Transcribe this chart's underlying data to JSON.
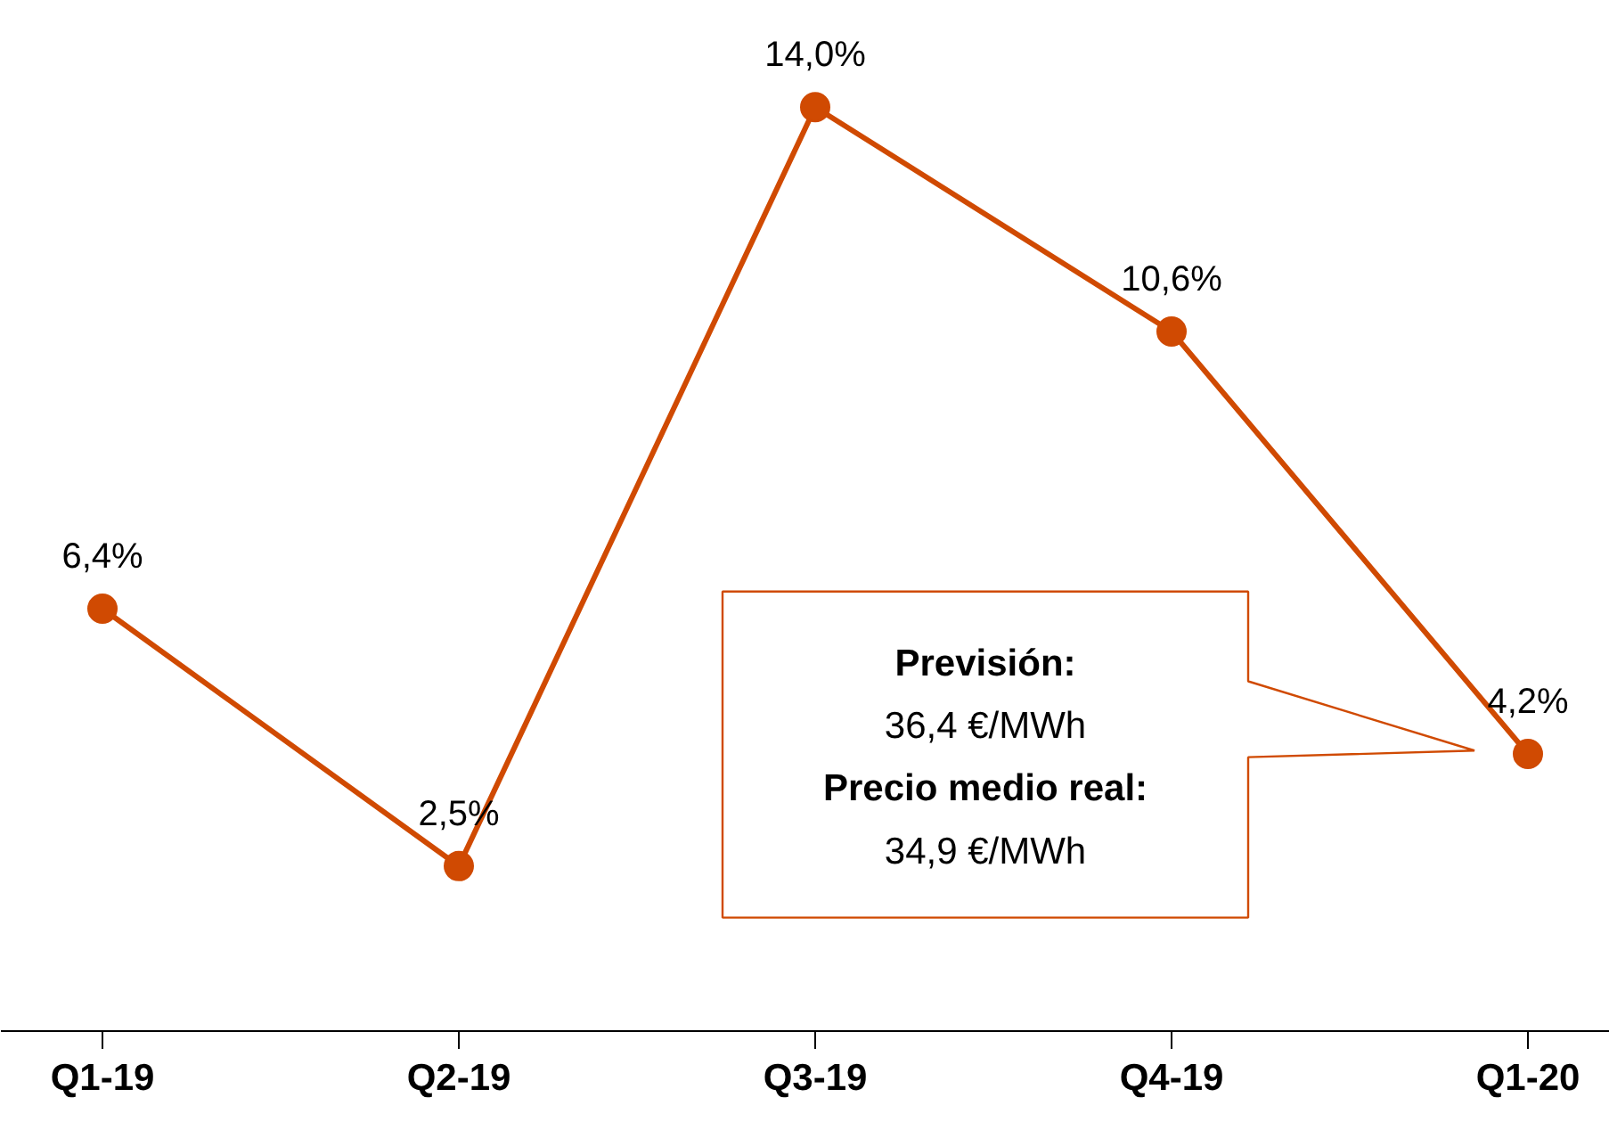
{
  "chart_data": {
    "type": "line",
    "categories": [
      "Q1-19",
      "Q2-19",
      "Q3-19",
      "Q4-19",
      "Q1-20"
    ],
    "values": [
      6.4,
      2.5,
      14.0,
      10.6,
      4.2
    ],
    "color": "#d04a02",
    "value_labels": [
      "6,4%",
      "2,5%",
      "14,0%",
      "10,6%",
      "4,2%"
    ],
    "marker": "circle",
    "line_style": "solid",
    "grid": false,
    "annotations": [
      "Previsión:\n36,4 €/MWh\nPrecio medio real:\n34,9 €/MWh"
    ]
  }
}
